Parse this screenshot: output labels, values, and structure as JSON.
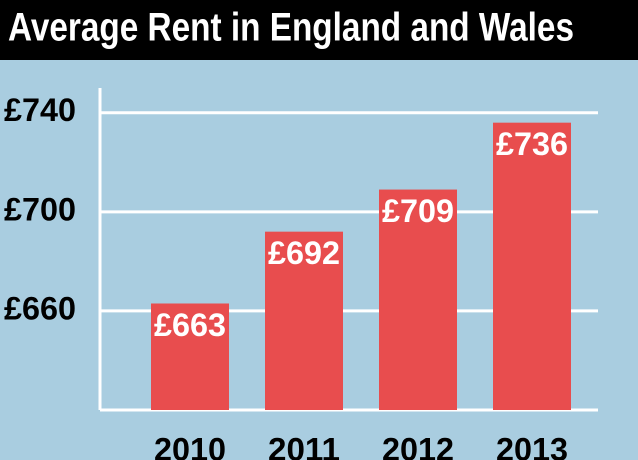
{
  "chart_data": {
    "type": "bar",
    "title": "Average Rent in England and Wales",
    "categories": [
      "2010",
      "2011",
      "2012",
      "2013"
    ],
    "values": [
      663,
      692,
      709,
      736
    ],
    "value_labels": [
      "£663",
      "£692",
      "£709",
      "£736"
    ],
    "color": "#e84d4e",
    "ylim": [
      620,
      750
    ],
    "yticks": [
      {
        "value": 660,
        "label": "£660"
      },
      {
        "value": 700,
        "label": "£700"
      },
      {
        "value": 740,
        "label": "£740"
      }
    ],
    "grid": true
  }
}
